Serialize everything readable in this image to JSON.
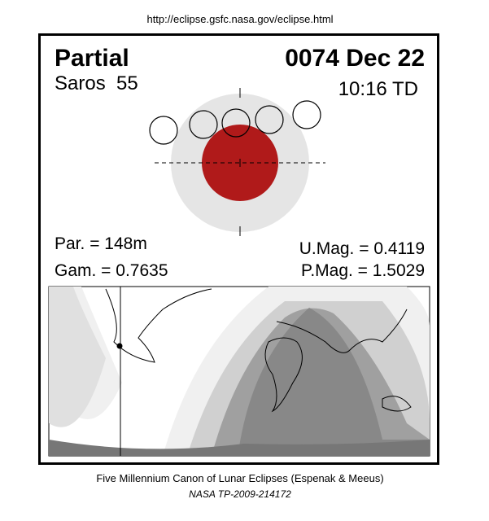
{
  "header": {
    "url": "http://eclipse.gsfc.nasa.gov/eclipse.html"
  },
  "panel": {
    "type": "Partial",
    "date": "0074 Dec 22",
    "saros": "Saros  55",
    "time": "10:16 TD"
  },
  "stats": {
    "par": "Par. = 148m",
    "gam": "Gam. = 0.7635",
    "umag": "U.Mag. = 0.4119",
    "pmag": "P.Mag. = 1.5029"
  },
  "footer": {
    "line1": "Five Millennium Canon of Lunar Eclipses (Espenak & Meeus)",
    "line2": "NASA TP-2009-214172"
  }
}
